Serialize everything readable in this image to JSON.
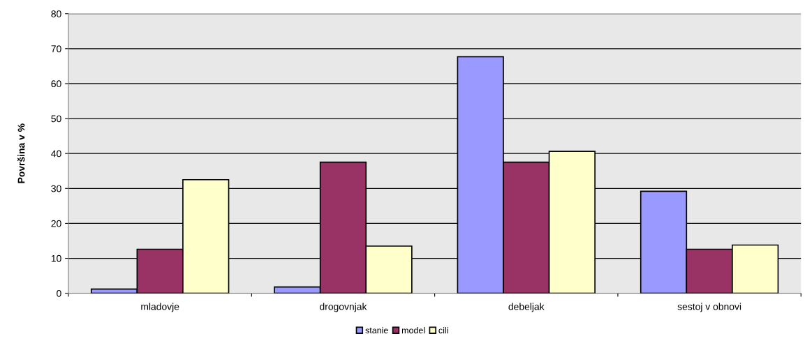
{
  "chart_data": {
    "type": "bar",
    "ylabel": "Površina v %",
    "categories": [
      "mladovje",
      "drogovnjak",
      "debeljak",
      "sestoj v obnovi"
    ],
    "series": [
      {
        "name": "stanie",
        "color": "#9999ff",
        "values": [
          1.2,
          1.8,
          67.7,
          29.2
        ]
      },
      {
        "name": "model",
        "color": "#993366",
        "values": [
          12.6,
          37.5,
          37.5,
          12.6
        ]
      },
      {
        "name": "cili",
        "color": "#ffffcc",
        "values": [
          32.5,
          13.5,
          40.6,
          13.8
        ]
      }
    ],
    "ylim": [
      0,
      80
    ],
    "yticks": [
      0,
      10,
      20,
      30,
      40,
      50,
      60,
      70,
      80
    ],
    "grid": "y",
    "legend": "bottom"
  }
}
